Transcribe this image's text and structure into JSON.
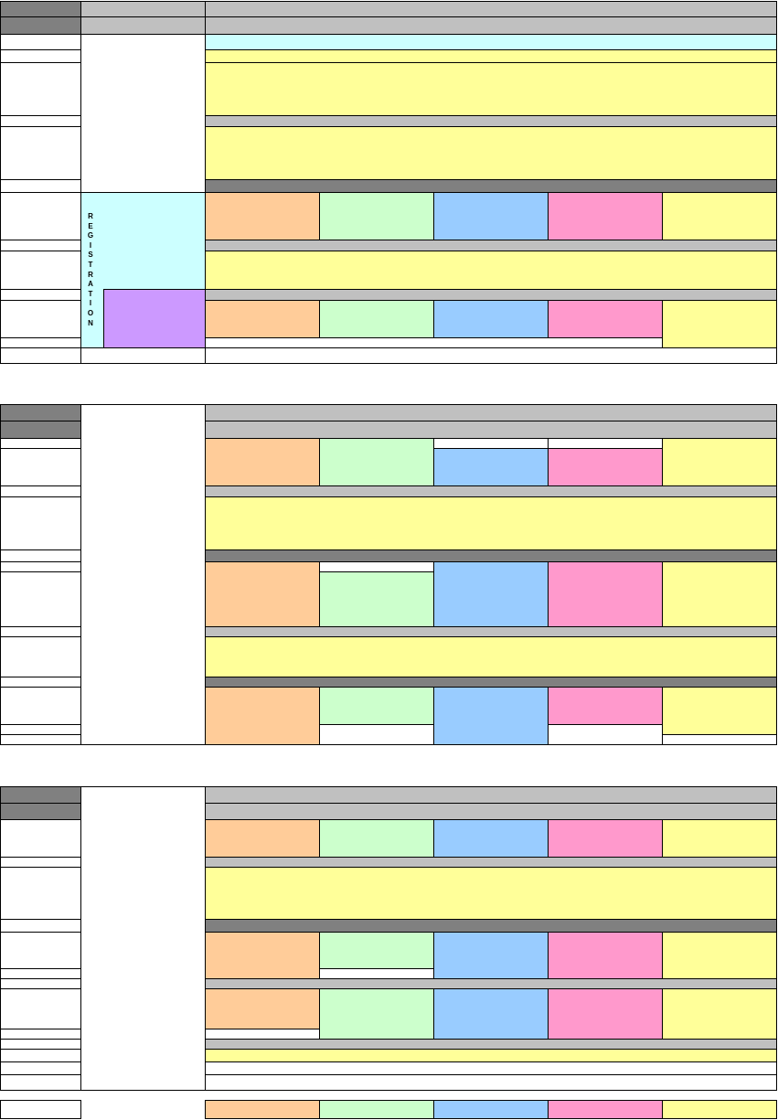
{
  "sidebar_label": "REGISTRATION",
  "colors": {
    "header_dark": "#808080",
    "header_light": "#c0c0c0",
    "yellow": "#ffff99",
    "cyan": "#ccffff",
    "orange": "#ffcc99",
    "green": "#ccffcc",
    "blue": "#99ccff",
    "pink": "#ff99cc",
    "purple": "#cc99ff"
  }
}
